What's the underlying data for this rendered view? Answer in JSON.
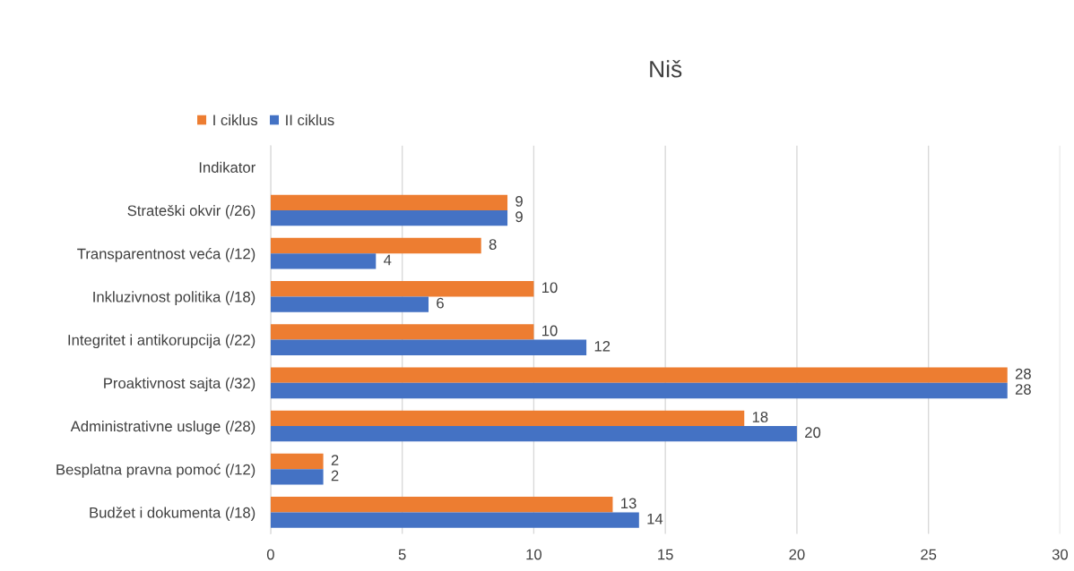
{
  "chart_data": {
    "type": "bar",
    "orientation": "horizontal",
    "title": "Niš",
    "categories": [
      "Indikator",
      "Strateški okvir (/26)",
      "Transparentnost veća (/12)",
      "Inkluzivnost politika (/18)",
      "Integritet i antikorupcija (/22)",
      "Proaktivnost sajta (/32)",
      "Administrativne usluge (/28)",
      "Besplatna pravna pomoć (/12)",
      "Budžet i dokumenta (/18)"
    ],
    "series": [
      {
        "name": "I ciklus",
        "color": "#ed7d31",
        "values": [
          null,
          9,
          8,
          10,
          10,
          28,
          18,
          2,
          13
        ]
      },
      {
        "name": "II ciklus",
        "color": "#4472c4",
        "values": [
          null,
          9,
          4,
          6,
          12,
          28,
          20,
          2,
          14
        ]
      }
    ],
    "xlim": [
      0,
      30
    ],
    "xticks": [
      0,
      5,
      10,
      15,
      20,
      25,
      30
    ],
    "grid": "x",
    "legend": "top left",
    "data_labels": true
  }
}
